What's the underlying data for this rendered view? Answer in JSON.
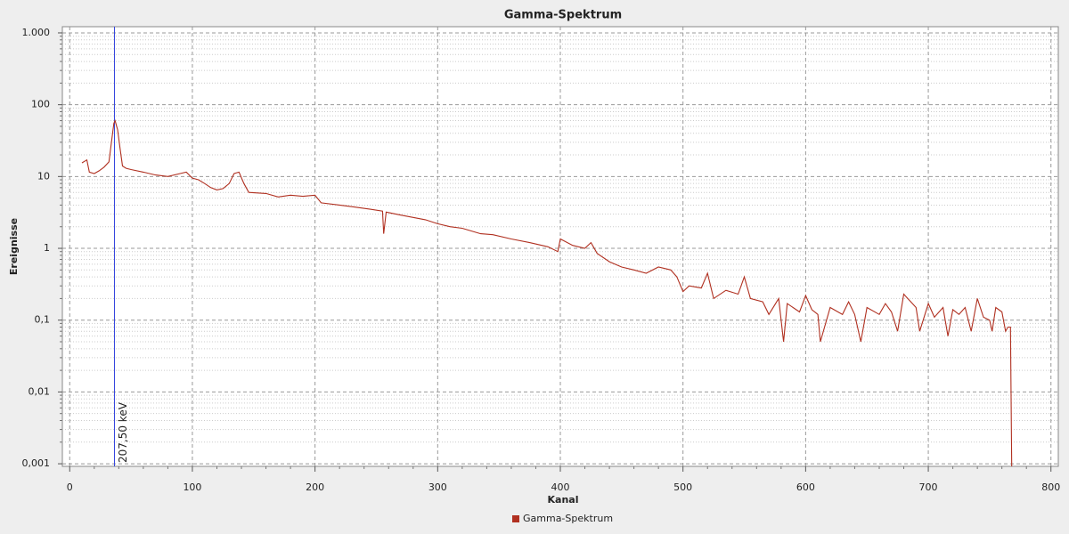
{
  "chart_data": {
    "type": "line",
    "title": "Gamma-Spektrum",
    "x_label": "Kanal",
    "y_label": "Ereignisse",
    "log_y": true,
    "grid": true,
    "legend": "bottom",
    "xlim": [
      -6,
      806
    ],
    "ylim": [
      0.00092,
      1220
    ],
    "xticks": [
      0,
      100,
      200,
      300,
      400,
      500,
      600,
      700,
      800
    ],
    "yticks": [
      {
        "value": 0.001,
        "label": "0,001"
      },
      {
        "value": 0.01,
        "label": "0,01"
      },
      {
        "value": 0.1,
        "label": "0,1"
      },
      1,
      10,
      100,
      {
        "value": 1000,
        "label": "1.000"
      }
    ],
    "annotations": [
      {
        "x": 36.5,
        "label": "207,50 keV",
        "color": "#3344dd"
      }
    ],
    "x": [
      10,
      14,
      16,
      20,
      24,
      28,
      32,
      34,
      36,
      37,
      39,
      41,
      43,
      46,
      50,
      60,
      70,
      80,
      90,
      95,
      100,
      105,
      110,
      115,
      120,
      125,
      130,
      134,
      138,
      142,
      146,
      160,
      170,
      180,
      190,
      200,
      205,
      220,
      230,
      245,
      255,
      256,
      258,
      270,
      290,
      300,
      310,
      320,
      335,
      345,
      360,
      375,
      390,
      398,
      400,
      410,
      420,
      425,
      430,
      440,
      450,
      460,
      470,
      480,
      490,
      495,
      500,
      505,
      515,
      520,
      525,
      535,
      545,
      550,
      555,
      565,
      570,
      578,
      582,
      585,
      595,
      600,
      605,
      610,
      612,
      620,
      630,
      635,
      640,
      645,
      650,
      660,
      665,
      670,
      675,
      680,
      690,
      693,
      700,
      705,
      712,
      716,
      720,
      725,
      730,
      735,
      740,
      745,
      750,
      752,
      755,
      760,
      763,
      765,
      767,
      768
    ],
    "series": [
      {
        "name": "Gamma-Spektrum",
        "color": "#b03020",
        "values": [
          15.5,
          17,
          11.5,
          11,
          12,
          13.5,
          16,
          30,
          55,
          60,
          45,
          25,
          14,
          13,
          12.5,
          11.5,
          10.5,
          10,
          11,
          11.5,
          9.5,
          9,
          8,
          7,
          6.5,
          6.8,
          8,
          11,
          11.5,
          8,
          6,
          5.8,
          5.2,
          5.5,
          5.3,
          5.5,
          4.3,
          4,
          3.8,
          3.5,
          3.3,
          1.6,
          3.2,
          2.9,
          2.5,
          2.2,
          2.0,
          1.9,
          1.6,
          1.55,
          1.35,
          1.2,
          1.05,
          0.9,
          1.35,
          1.1,
          1.0,
          1.2,
          0.85,
          0.65,
          0.55,
          0.5,
          0.45,
          0.55,
          0.5,
          0.4,
          0.25,
          0.3,
          0.28,
          0.45,
          0.2,
          0.26,
          0.23,
          0.4,
          0.2,
          0.18,
          0.12,
          0.2,
          0.05,
          0.17,
          0.13,
          0.22,
          0.14,
          0.12,
          0.05,
          0.15,
          0.12,
          0.18,
          0.12,
          0.05,
          0.15,
          0.12,
          0.17,
          0.13,
          0.07,
          0.23,
          0.15,
          0.07,
          0.17,
          0.11,
          0.15,
          0.06,
          0.14,
          0.12,
          0.15,
          0.07,
          0.2,
          0.11,
          0.1,
          0.07,
          0.15,
          0.13,
          0.07,
          0.08,
          0.08,
          0.0009
        ]
      }
    ]
  }
}
